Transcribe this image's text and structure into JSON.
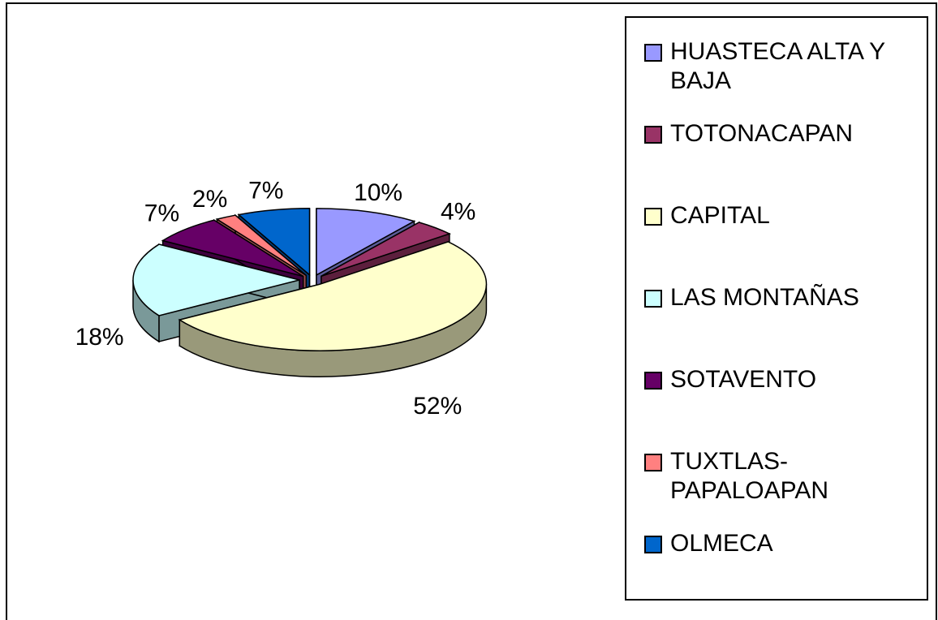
{
  "chart_data": {
    "type": "pie3d",
    "categories": [
      "HUASTECA ALTA Y BAJA",
      "TOTONACAPAN",
      "CAPITAL",
      "LAS MONTAÑAS",
      "SOTAVENTO",
      "TUXTLAS-PAPALOAPAN",
      "OLMECA"
    ],
    "values": [
      10,
      4,
      52,
      18,
      7,
      2,
      7
    ],
    "value_labels": [
      "10%",
      "4%",
      "52%",
      "18%",
      "7%",
      "2%",
      "7%"
    ],
    "colors": [
      "#9999ff",
      "#993366",
      "#ffffcc",
      "#ccffff",
      "#660066",
      "#ff8080",
      "#0066cc"
    ],
    "legend": "right"
  }
}
